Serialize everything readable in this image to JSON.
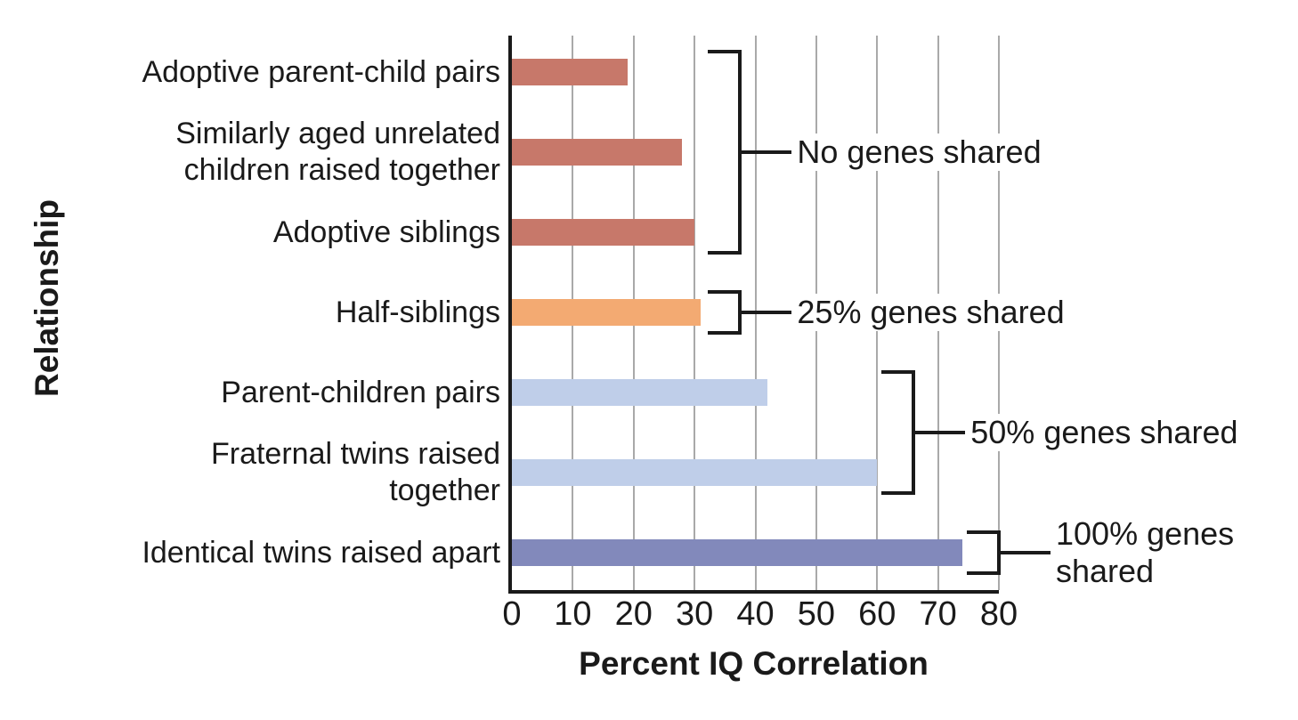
{
  "figure": {
    "background": "#ffffff"
  },
  "chart_data": {
    "type": "bar",
    "orientation": "horizontal",
    "title": "",
    "xlabel": "Percent IQ Correlation",
    "ylabel": "Relationship",
    "xlim": [
      0,
      80
    ],
    "xticks": [
      0,
      10,
      20,
      30,
      40,
      50,
      60,
      70,
      80
    ],
    "grid": "vertical gridlines every 10, light gray, behind bars",
    "legend": "none",
    "categories": [
      "Adoptive parent-child pairs",
      "Similarly aged unrelated\nchildren raised together",
      "Adoptive siblings",
      "Half-siblings",
      "Parent-children pairs",
      "Fraternal twins raised\ntogether",
      "Identical twins raised apart"
    ],
    "values": [
      19,
      28,
      30,
      31,
      42,
      60,
      74
    ],
    "bar_colors": [
      "#C7786A",
      "#C7786A",
      "#C7786A",
      "#F3AA72",
      "#BFCEE9",
      "#BFCEE9",
      "#8289BB"
    ],
    "annotations": [
      {
        "label": "No genes shared",
        "rows": [
          0,
          2
        ],
        "x": 37.5
      },
      {
        "label": "25% genes shared",
        "rows": [
          3,
          3
        ],
        "x": 37.5
      },
      {
        "label": "50% genes shared",
        "rows": [
          4,
          5
        ],
        "x": 66
      },
      {
        "label": "100% genes\nshared",
        "rows": [
          6,
          6
        ],
        "x": 80
      }
    ],
    "colors": {
      "red_bar": "#C7786A",
      "orange_bar": "#F3AA72",
      "light_blue_bar": "#BFCEE9",
      "purple_bar": "#8289BB",
      "gridline": "#A9A9A9",
      "axis": "#1A1A1A",
      "text": "#1A1A1A",
      "bracket": "#1A1A1A"
    }
  }
}
